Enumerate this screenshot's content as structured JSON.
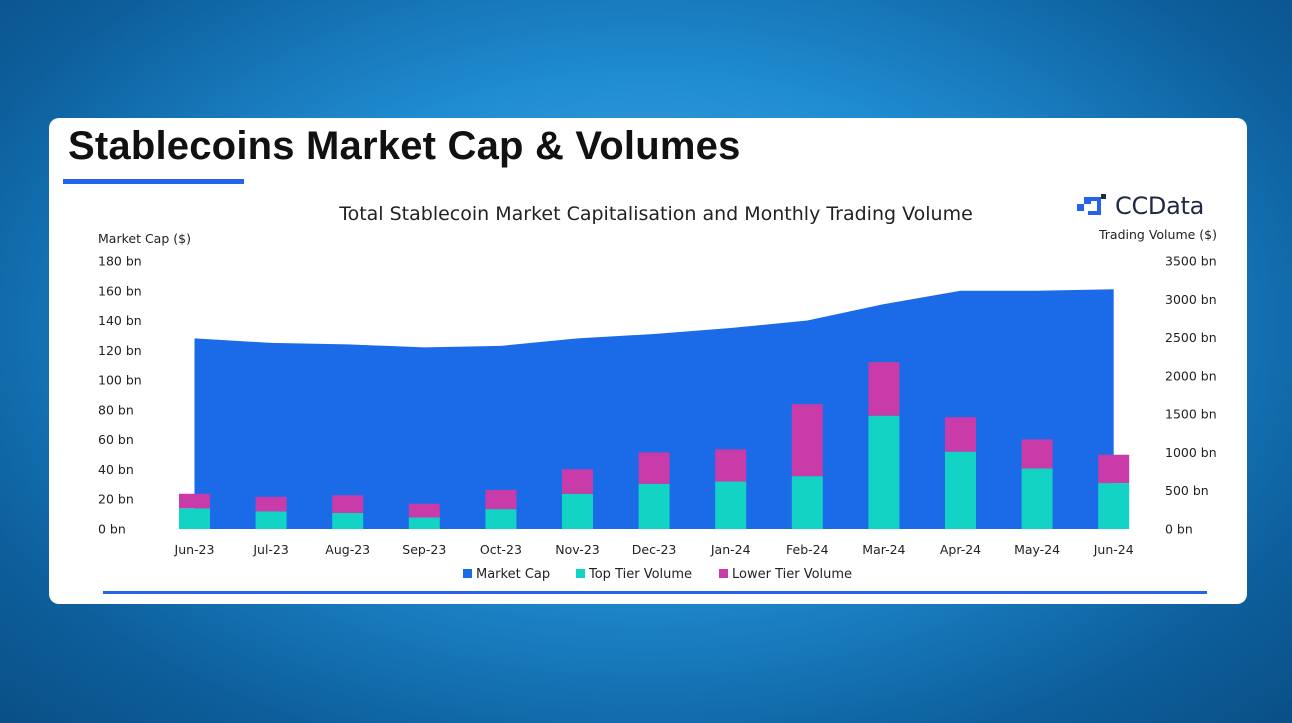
{
  "card": {
    "title": "Stablecoins Market Cap & Volumes",
    "logo_text": "CCData"
  },
  "colors": {
    "market_cap": "#1b6be8",
    "top_tier": "#12d3c4",
    "lower_tier": "#c93ba8",
    "accent": "#2563eb"
  },
  "chart_data": {
    "type": "bar",
    "title": "Total Stablecoin Market Capitalisation and Monthly Trading Volume",
    "ylabel_left": "Market Cap ($)",
    "ylabel_right": "Trading Volume ($)",
    "ylim_left": [
      0,
      180
    ],
    "ylim_right": [
      0,
      3500
    ],
    "left_ticks": [
      "0 bn",
      "20 bn",
      "40 bn",
      "60 bn",
      "80 bn",
      "100 bn",
      "120 bn",
      "140 bn",
      "160 bn",
      "180 bn"
    ],
    "right_ticks": [
      "0 bn",
      "500 bn",
      "1000 bn",
      "1500 bn",
      "2000 bn",
      "2500 bn",
      "3000 bn",
      "3500 bn"
    ],
    "categories": [
      "Jun-23",
      "Jul-23",
      "Aug-23",
      "Sep-23",
      "Oct-23",
      "Nov-23",
      "Dec-23",
      "Jan-24",
      "Feb-24",
      "Mar-24",
      "Apr-24",
      "May-24",
      "Jun-24"
    ],
    "grid": false,
    "legend_position": "bottom",
    "series": [
      {
        "name": "Market Cap",
        "type": "area",
        "axis": "left",
        "values": [
          128,
          125,
          124,
          122,
          123,
          128,
          131,
          135,
          140,
          151,
          160,
          160,
          161
        ]
      },
      {
        "name": "Top Tier Volume",
        "type": "stacked-bar",
        "axis": "right",
        "values": [
          270,
          230,
          210,
          150,
          260,
          460,
          590,
          620,
          690,
          1480,
          1010,
          790,
          600
        ]
      },
      {
        "name": "Lower Tier Volume",
        "type": "stacked-bar",
        "axis": "right",
        "values": [
          190,
          190,
          230,
          180,
          250,
          320,
          410,
          420,
          940,
          700,
          450,
          380,
          370
        ]
      }
    ]
  }
}
